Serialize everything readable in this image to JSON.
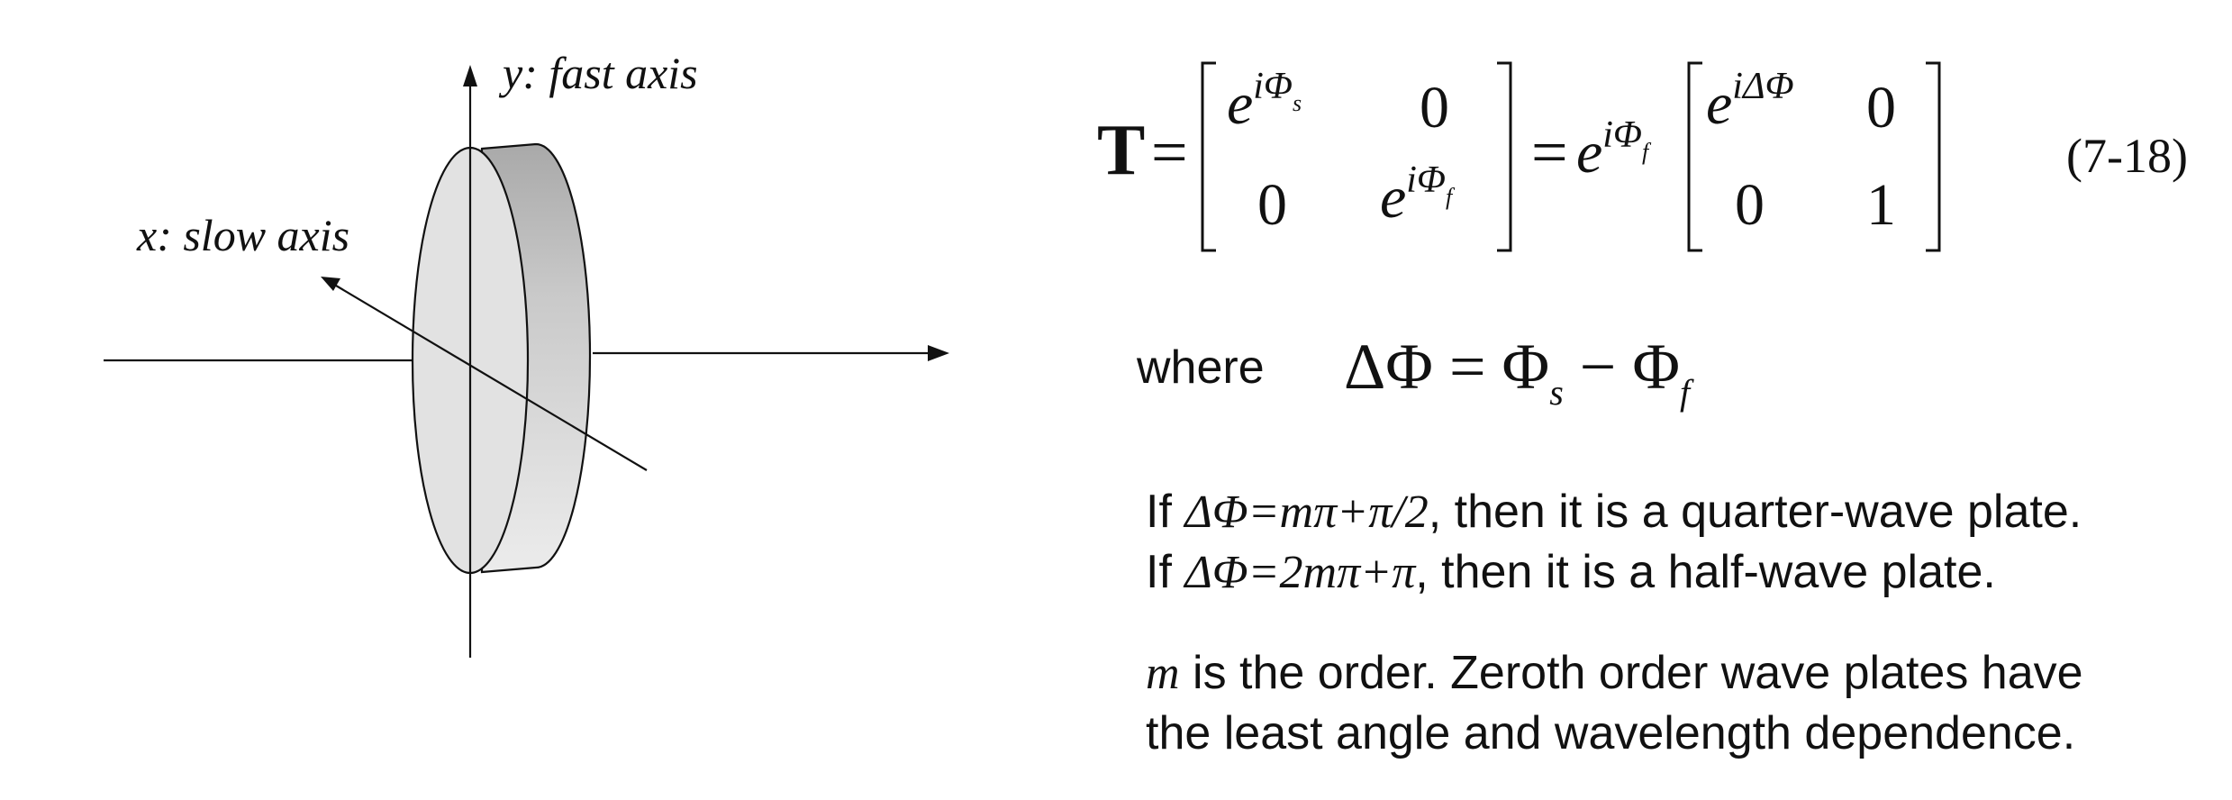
{
  "diagram": {
    "y_axis_label": "y: fast axis",
    "x_axis_label": "x: slow axis"
  },
  "equation": {
    "lhs": "T",
    "eq1": "=",
    "m1_r1c1_base": "e",
    "m1_r1c1_sup": "iΦ",
    "m1_r1c1_sub": "s",
    "m1_r1c2": "0",
    "m1_r2c1": "0",
    "m1_r2c2_base": "e",
    "m1_r2c2_sup": "iΦ",
    "m1_r2c2_sub": "f",
    "eq2": "=",
    "factor_base": "e",
    "factor_sup": "iΦ",
    "factor_sub": "f",
    "m2_r1c1_base": "e",
    "m2_r1c1_sup": "iΔΦ",
    "m2_r1c2": "0",
    "m2_r2c1": "0",
    "m2_r2c2": "1",
    "number": "(7-18)"
  },
  "where": {
    "label": "where",
    "lhs": "ΔΦ",
    "eq": "=",
    "phi1": "Φ",
    "sub1": "s",
    "minus": "−",
    "phi2": "Φ",
    "sub2": "f"
  },
  "conditions": {
    "line1_prefix": "If ",
    "line1_math": "ΔΦ=mπ+π/2",
    "line1_suffix": ", then it is a quarter-wave plate.",
    "line2_prefix": "If ",
    "line2_math": "ΔΦ=2mπ+π",
    "line2_suffix": ", then it is a half-wave plate."
  },
  "order_note": {
    "m": "m",
    "line1_rest": " is the order. Zeroth order wave plates have",
    "line2": "the least angle and wavelength dependence."
  }
}
